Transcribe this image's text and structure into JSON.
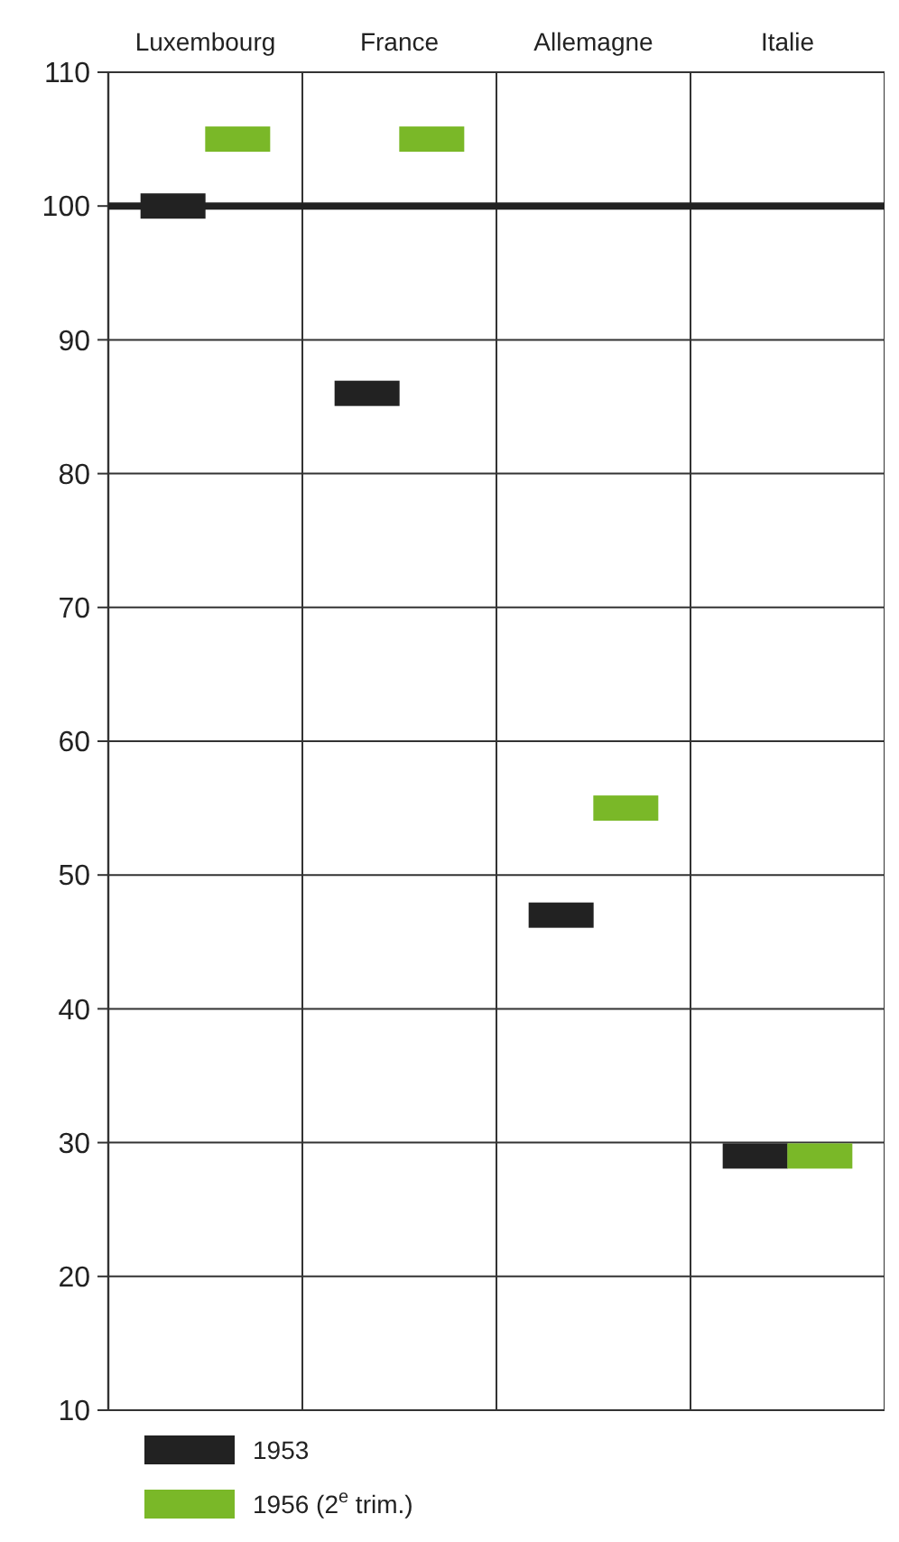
{
  "chart_data": {
    "type": "scatter",
    "categories": [
      "Luxembourg",
      "France",
      "Allemagne",
      "Italie"
    ],
    "series": [
      {
        "name": "1953",
        "color": "#222222",
        "values": [
          100,
          86,
          47,
          29
        ]
      },
      {
        "name": "1956 (2$^{e}$ trim.)",
        "color": "#7ab828",
        "values": [
          105,
          105,
          55,
          29
        ]
      }
    ],
    "ylim": [
      10,
      110
    ],
    "yticks": [
      10,
      20,
      30,
      40,
      50,
      60,
      70,
      80,
      90,
      100,
      110
    ],
    "grid": true,
    "marker": "square",
    "legend": "bottom left",
    "ref_lines": [
      {
        "axis": "y",
        "value": 100,
        "color": "#222222"
      }
    ]
  }
}
